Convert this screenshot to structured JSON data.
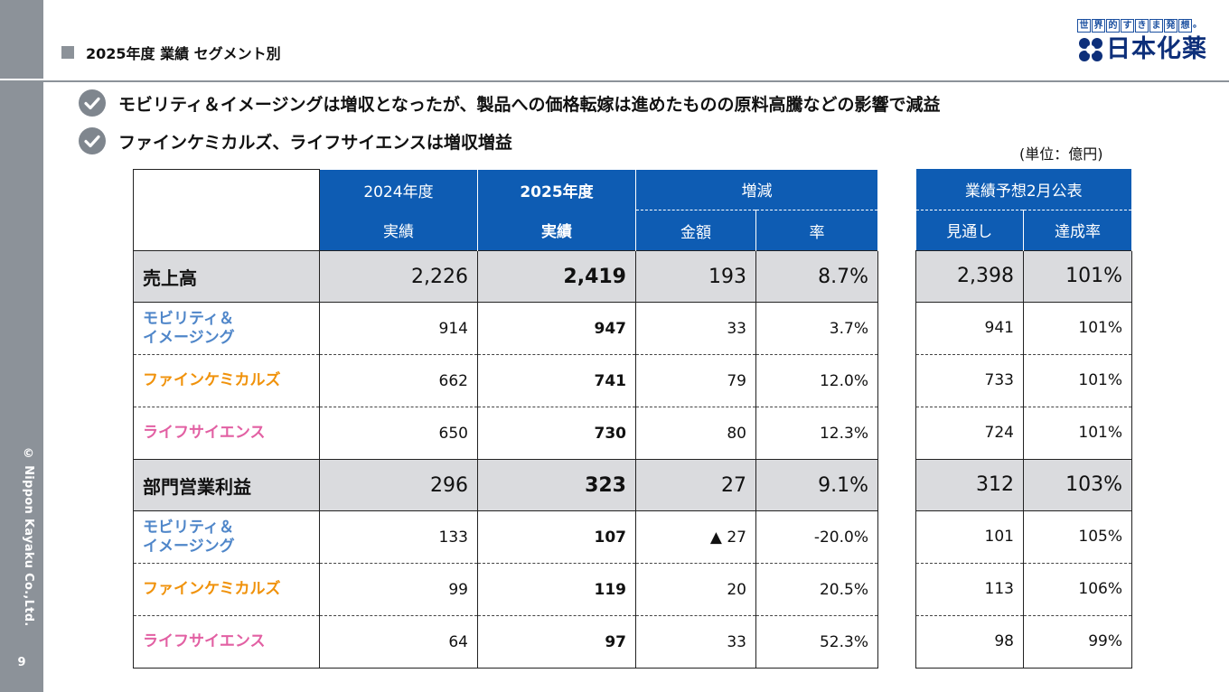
{
  "header": {
    "title": "2025年度 業績 セグメント別"
  },
  "logo": {
    "tagline_chars": [
      "世",
      "界",
      "的",
      "す",
      "き",
      "ま",
      "発",
      "想",
      "。"
    ],
    "name": "日本化薬",
    "colors": {
      "primary": "#0d2f7a",
      "accent": "#1a4fa0"
    }
  },
  "sidebar": {
    "copyright": "© Nippon Kayaku Co.,Ltd.",
    "page_number": "9"
  },
  "bullets": [
    "モビリティ＆イメージングは増収となったが、製品への価格転嫁は進めたものの原料高騰などの影響で減益",
    "ファインケミカルズ、ライフサイエンスは増収増益"
  ],
  "unit": "(単位：億円)",
  "table": {
    "headers": {
      "fy2024": "2024年度",
      "fy2025": "2025年度",
      "change": "増減",
      "actual": "実績",
      "actual_bold": "実績",
      "amount": "金額",
      "rate": "率"
    },
    "forecast_headers": {
      "group": "業績予想2月公表",
      "outlook": "見通し",
      "achievement": "達成率"
    },
    "rows": [
      {
        "label": "売上高",
        "type": "total",
        "fy2024": "2,226",
        "fy2025": "2,419",
        "amount": "193",
        "rate": "8.7%",
        "outlook": "2,398",
        "achievement": "101%"
      },
      {
        "label_lines": [
          "モビリティ＆",
          "イメージング"
        ],
        "type": "mobility",
        "fy2024": "914",
        "fy2025": "947",
        "amount": "33",
        "rate": "3.7%",
        "outlook": "941",
        "achievement": "101%"
      },
      {
        "label": "ファインケミカルズ",
        "type": "fine",
        "fy2024": "662",
        "fy2025": "741",
        "amount": "79",
        "rate": "12.0%",
        "outlook": "733",
        "achievement": "101%"
      },
      {
        "label": "ライフサイエンス",
        "type": "life",
        "fy2024": "650",
        "fy2025": "730",
        "amount": "80",
        "rate": "12.3%",
        "outlook": "724",
        "achievement": "101%"
      },
      {
        "label": "部門営業利益",
        "type": "total",
        "fy2024": "296",
        "fy2025": "323",
        "amount": "27",
        "rate": "9.1%",
        "outlook": "312",
        "achievement": "103%"
      },
      {
        "label_lines": [
          "モビリティ＆",
          "イメージング"
        ],
        "type": "mobility",
        "fy2024": "133",
        "fy2025": "107",
        "amount": "▲ 27",
        "rate": "-20.0%",
        "outlook": "101",
        "achievement": "105%"
      },
      {
        "label": "ファインケミカルズ",
        "type": "fine",
        "fy2024": "99",
        "fy2025": "119",
        "amount": "20",
        "rate": "20.5%",
        "outlook": "113",
        "achievement": "106%"
      },
      {
        "label": "ライフサイエンス",
        "type": "life",
        "fy2024": "64",
        "fy2025": "97",
        "amount": "33",
        "rate": "52.3%",
        "outlook": "98",
        "achievement": "99%"
      }
    ]
  },
  "colors": {
    "header_blue": "#0e5cb3",
    "total_gray": "#dadbde",
    "mobility": "#4f86c9",
    "fine": "#f0920b",
    "life": "#e260a3"
  }
}
